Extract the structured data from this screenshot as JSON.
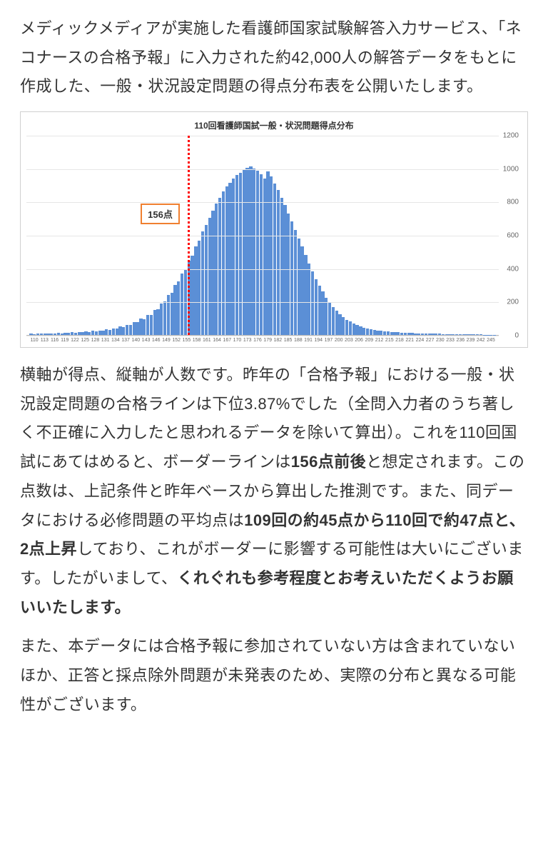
{
  "intro_text": "メディックメディアが実施した看護師国家試験解答入力サービス、「ネコナースの合格予報」に入力された約42,000人の解答データをもとに作成した、一般・状況設定問題の得点分布表を公開いたします。",
  "chart": {
    "type": "bar",
    "title": "110回看護師国試一般・状況問題得点分布",
    "title_fontsize": 12,
    "background_color": "#ffffff",
    "grid_color": "#e6e6e6",
    "axis_color": "#bbbbbb",
    "bar_color": "#5b8fd6",
    "bar_width": 0.85,
    "cutoff": {
      "value": 156,
      "label": "156点",
      "line_color": "#ff0000",
      "label_border_color": "#f08030",
      "label_text_color": "#333333"
    },
    "ylim": [
      0,
      1200
    ],
    "ytick_step": 200,
    "yticks": [
      0,
      200,
      400,
      600,
      800,
      1000,
      1200
    ],
    "label_fontsize": 10,
    "xtick_fontsize": 7,
    "x_start": 110,
    "x_end": 245,
    "x_step": 3,
    "values": [
      8,
      6,
      9,
      7,
      10,
      8,
      11,
      9,
      12,
      10,
      14,
      12,
      16,
      14,
      18,
      16,
      20,
      18,
      24,
      22,
      28,
      26,
      34,
      32,
      40,
      38,
      50,
      48,
      62,
      60,
      78,
      76,
      98,
      96,
      122,
      120,
      150,
      155,
      190,
      200,
      240,
      255,
      300,
      320,
      370,
      395,
      445,
      475,
      530,
      565,
      620,
      660,
      705,
      745,
      790,
      825,
      860,
      890,
      915,
      940,
      960,
      975,
      990,
      1005,
      1010,
      1000,
      985,
      965,
      940,
      980,
      950,
      910,
      870,
      825,
      780,
      730,
      680,
      630,
      580,
      530,
      480,
      430,
      380,
      335,
      295,
      260,
      225,
      195,
      168,
      145,
      125,
      108,
      92,
      80,
      70,
      60,
      52,
      45,
      40,
      35,
      31,
      28,
      25,
      23,
      21,
      19,
      17,
      16,
      15,
      14,
      13,
      12,
      11,
      10,
      9,
      9,
      8,
      8,
      7,
      7,
      6,
      6,
      5,
      5,
      5,
      4,
      4,
      4,
      3,
      3,
      3,
      3,
      2,
      2,
      2,
      2
    ]
  },
  "body_parts": [
    {
      "t": "横軸が得点、縦軸が人数です。昨年の「合格予報」における一般・状況設定問題の合格ラインは下位3.87%でした（全問入力者のうち著しく不正確に入力したと思われるデータを除いて算出）。これを110回国試にあてはめると、ボーダーラインは",
      "b": false
    },
    {
      "t": "156点前後",
      "b": true
    },
    {
      "t": "と想定されます。この点数は、上記条件と昨年ベースから算出した推測です。また、同データにおける必修問題の平均点は",
      "b": false
    },
    {
      "t": "109回の約45点から110回で約47点と、2点上昇",
      "b": true
    },
    {
      "t": "しており、これがボーダーに影響する可能性は大いにございます。したがいまして、",
      "b": false
    },
    {
      "t": "くれぐれも参考程度とお考えいただくようお願いいたします。",
      "b": true
    }
  ],
  "footer_text": "また、本データには合格予報に参加されていない方は含まれていないほか、正答と採点除外問題が未発表のため、実際の分布と異なる可能性がございます。"
}
